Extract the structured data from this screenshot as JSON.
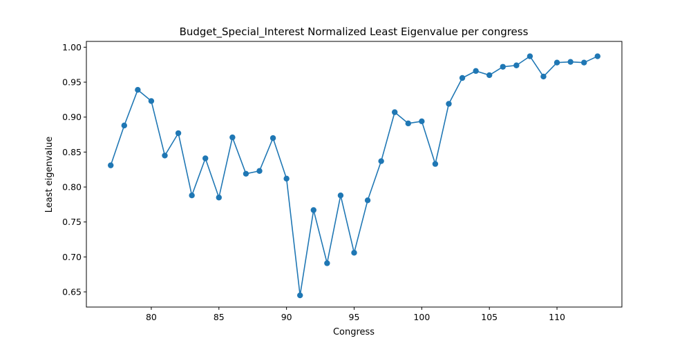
{
  "chart_data": {
    "type": "line",
    "title": "Budget_Special_Interest Normalized Least Eigenvalue per congress",
    "xlabel": "Congress",
    "ylabel": "Least eigenvalue",
    "xlim": [
      75.2,
      114.8
    ],
    "ylim": [
      0.6283,
      1.0083
    ],
    "xticks": [
      80,
      85,
      90,
      95,
      100,
      105,
      110
    ],
    "yticks": [
      0.65,
      0.7,
      0.75,
      0.8,
      0.85,
      0.9,
      0.95,
      1.0
    ],
    "ytick_labels": [
      "0.65",
      "0.70",
      "0.75",
      "0.80",
      "0.85",
      "0.90",
      "0.95",
      "1.00"
    ],
    "grid": false,
    "line_color": "#1f77b4",
    "marker": "circle",
    "series": [
      {
        "x": [
          77,
          78,
          79,
          80,
          81,
          82,
          83,
          84,
          85,
          86,
          87,
          88,
          89,
          90,
          91,
          92,
          93,
          94,
          95,
          96,
          97,
          98,
          99,
          100,
          101,
          102,
          103,
          104,
          105,
          106,
          107,
          108,
          109,
          110,
          111,
          112,
          113
        ],
        "y": [
          0.831,
          0.888,
          0.939,
          0.923,
          0.845,
          0.877,
          0.788,
          0.841,
          0.785,
          0.871,
          0.819,
          0.823,
          0.87,
          0.812,
          0.645,
          0.767,
          0.691,
          0.788,
          0.706,
          0.781,
          0.837,
          0.907,
          0.891,
          0.894,
          0.833,
          0.919,
          0.956,
          0.966,
          0.96,
          0.972,
          0.974,
          0.987,
          0.958,
          0.978,
          0.979,
          0.978,
          0.987
        ]
      }
    ]
  }
}
